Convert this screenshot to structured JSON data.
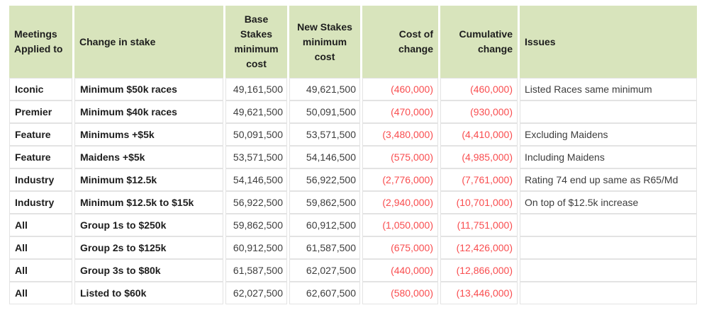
{
  "colors": {
    "header_bg": "#d8e4bc",
    "negative_text": "#f94d4f",
    "cell_border": "#e3e3e3"
  },
  "table": {
    "columns": [
      {
        "key": "meeting",
        "label": "Meetings Applied to"
      },
      {
        "key": "change",
        "label": "Change in stake"
      },
      {
        "key": "base",
        "label": "Base Stakes minimum cost"
      },
      {
        "key": "new",
        "label": "New Stakes minimum cost"
      },
      {
        "key": "cost",
        "label": "Cost of change"
      },
      {
        "key": "cumulative",
        "label": "Cumulative change"
      },
      {
        "key": "issues",
        "label": "Issues"
      }
    ],
    "rows": [
      {
        "meeting": "Iconic",
        "change": "Minimum $50k races",
        "base": "49,161,500",
        "new": "49,621,500",
        "cost": "(460,000)",
        "cumulative": "(460,000)",
        "issues": "Listed Races same minimum"
      },
      {
        "meeting": "Premier",
        "change": "Minimum $40k races",
        "base": "49,621,500",
        "new": "50,091,500",
        "cost": "(470,000)",
        "cumulative": "(930,000)",
        "issues": ""
      },
      {
        "meeting": "Feature",
        "change": "Minimums +$5k",
        "base": "50,091,500",
        "new": "53,571,500",
        "cost": "(3,480,000)",
        "cumulative": "(4,410,000)",
        "issues": "Excluding Maidens"
      },
      {
        "meeting": "Feature",
        "change": "Maidens +$5k",
        "base": "53,571,500",
        "new": "54,146,500",
        "cost": "(575,000)",
        "cumulative": "(4,985,000)",
        "issues": "Including Maidens"
      },
      {
        "meeting": "Industry",
        "change": "Minimum $12.5k",
        "base": "54,146,500",
        "new": "56,922,500",
        "cost": "(2,776,000)",
        "cumulative": "(7,761,000)",
        "issues": "Rating 74 end up same as R65/Md"
      },
      {
        "meeting": "Industry",
        "change": "Minimum $12.5k to $15k",
        "base": "56,922,500",
        "new": "59,862,500",
        "cost": "(2,940,000)",
        "cumulative": "(10,701,000)",
        "issues": "On top of $12.5k increase"
      },
      {
        "meeting": "All",
        "change": "Group 1s to $250k",
        "base": "59,862,500",
        "new": "60,912,500",
        "cost": "(1,050,000)",
        "cumulative": "(11,751,000)",
        "issues": ""
      },
      {
        "meeting": "All",
        "change": "Group 2s to $125k",
        "base": "60,912,500",
        "new": "61,587,500",
        "cost": "(675,000)",
        "cumulative": "(12,426,000)",
        "issues": ""
      },
      {
        "meeting": "All",
        "change": "Group 3s to $80k",
        "base": "61,587,500",
        "new": "62,027,500",
        "cost": "(440,000)",
        "cumulative": "(12,866,000)",
        "issues": ""
      },
      {
        "meeting": "All",
        "change": "Listed to $60k",
        "base": "62,027,500",
        "new": "62,607,500",
        "cost": "(580,000)",
        "cumulative": "(13,446,000)",
        "issues": ""
      }
    ]
  }
}
